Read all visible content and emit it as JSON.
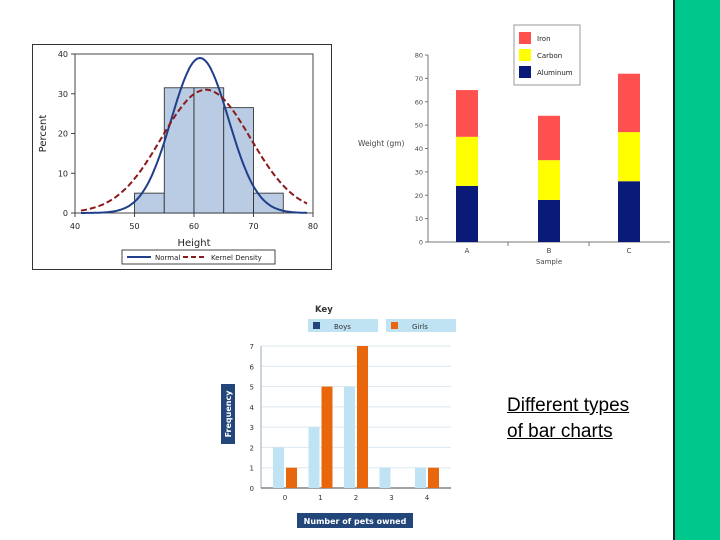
{
  "caption": {
    "line1": "Different types",
    "line2": "of bar charts"
  },
  "theme": {
    "side_bar_color": "#00c88c"
  },
  "chart_data": [
    {
      "type": "bar",
      "subtype": "histogram-with-density",
      "xlabel": "Height",
      "ylabel": "Percent",
      "xlim": [
        40,
        80
      ],
      "ylim": [
        0,
        40
      ],
      "xticks": [
        "40",
        "50",
        "60",
        "70",
        "80"
      ],
      "yticks": [
        "0",
        "10",
        "20",
        "30",
        "40"
      ],
      "bins": [
        {
          "start": 50,
          "end": 55,
          "value": 5
        },
        {
          "start": 55,
          "end": 60,
          "value": 31.5
        },
        {
          "start": 60,
          "end": 65,
          "value": 31.5
        },
        {
          "start": 65,
          "end": 70,
          "value": 26.5
        },
        {
          "start": 70,
          "end": 75,
          "value": 5
        }
      ],
      "legend": [
        {
          "name": "Normal",
          "color": "#1f3f8a",
          "style": "solid"
        },
        {
          "name": "Kernel Density",
          "color": "#8b1a1a",
          "style": "dashed"
        }
      ],
      "curves": [
        {
          "name": "Normal",
          "mean": 61,
          "sd": 4.8,
          "peak": 39
        },
        {
          "name": "Kernel Density",
          "mean": 62,
          "sd": 7.5,
          "peak": 31
        }
      ],
      "bar_color": "#b9cce4",
      "legend_position": "bottom"
    },
    {
      "type": "bar",
      "subtype": "stacked",
      "xlabel": "Sample",
      "ylabel": "Weight (gm)",
      "categories": [
        "A",
        "B",
        "C"
      ],
      "ylim": [
        0,
        80
      ],
      "yticks": [
        "0",
        "10",
        "20",
        "30",
        "40",
        "50",
        "60",
        "70",
        "80"
      ],
      "series": [
        {
          "name": "Aluminum",
          "color": "#0a1a78",
          "values": [
            24,
            18,
            26
          ]
        },
        {
          "name": "Carbon",
          "color": "#ffff00",
          "values": [
            21,
            17,
            21
          ]
        },
        {
          "name": "Iron",
          "color": "#ff5050",
          "values": [
            20,
            19,
            25
          ]
        }
      ],
      "legend_position": "top-right"
    },
    {
      "type": "bar",
      "subtype": "grouped",
      "title": "Key",
      "xlabel": "Number of pets owned",
      "ylabel": "Frequency",
      "categories": [
        "0",
        "1",
        "2",
        "3",
        "4"
      ],
      "ylim": [
        0,
        7
      ],
      "yticks": [
        "0",
        "1",
        "2",
        "3",
        "4",
        "5",
        "6",
        "7"
      ],
      "series": [
        {
          "name": "Boys",
          "color": "#bfe3f3",
          "values": [
            2,
            3,
            5,
            1,
            1
          ]
        },
        {
          "name": "Girls",
          "color": "#e8670c",
          "values": [
            1,
            5,
            7,
            0,
            1
          ]
        }
      ],
      "legend_position": "top"
    }
  ]
}
